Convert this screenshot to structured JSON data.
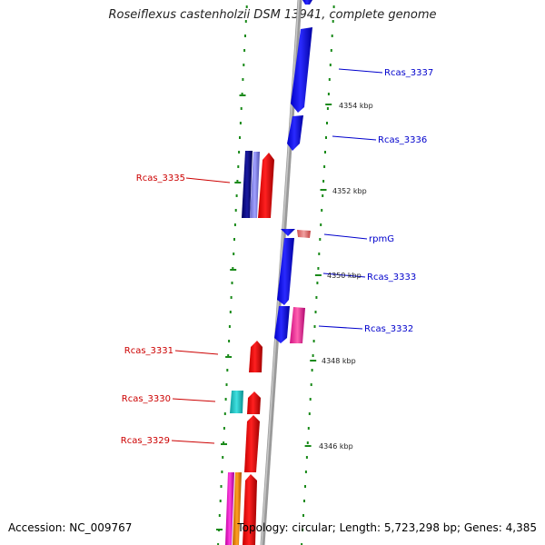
{
  "title": "Roseiflexus castenholzii DSM 13941, complete genome",
  "footer": {
    "accession": "Accession: NC_009767",
    "topology": "Topology: circular; Length: 5,723,298 bp; Genes: 4,385"
  },
  "colors": {
    "forward_label": "#0000cc",
    "reverse_label": "#cc0000",
    "backbone": "#888888",
    "ticks": "#1a8a1a"
  },
  "tick_labels": [
    "4354 kbp",
    "4352 kbp",
    "4350 kbp",
    "4348 kbp",
    "4346 kbp"
  ],
  "genes": [
    {
      "label": "Rcas_3337",
      "strand": "forward"
    },
    {
      "label": "Rcas_3336",
      "strand": "forward"
    },
    {
      "label": "Rcas_3335",
      "strand": "reverse"
    },
    {
      "label": "rpmG",
      "strand": "forward"
    },
    {
      "label": "Rcas_3333",
      "strand": "forward"
    },
    {
      "label": "Rcas_3332",
      "strand": "forward"
    },
    {
      "label": "Rcas_3331",
      "strand": "reverse"
    },
    {
      "label": "Rcas_3330",
      "strand": "reverse"
    },
    {
      "label": "Rcas_3329",
      "strand": "reverse"
    }
  ]
}
